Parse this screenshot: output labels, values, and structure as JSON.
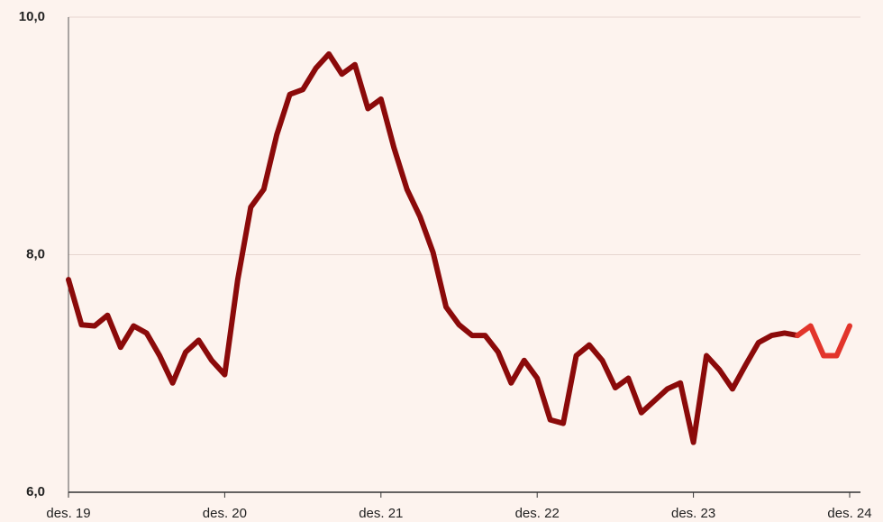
{
  "chart_data": {
    "type": "line",
    "categories": [
      "des. 19",
      null,
      null,
      null,
      null,
      null,
      null,
      null,
      null,
      null,
      null,
      null,
      "des. 20",
      null,
      null,
      null,
      null,
      null,
      null,
      null,
      null,
      null,
      null,
      null,
      "des. 21",
      null,
      null,
      null,
      null,
      null,
      null,
      null,
      null,
      null,
      null,
      null,
      "des. 22",
      null,
      null,
      null,
      null,
      null,
      null,
      null,
      null,
      null,
      null,
      null,
      "des. 23",
      null,
      null,
      null,
      null,
      null,
      null,
      null,
      null,
      null,
      null,
      null,
      "des. 24"
    ],
    "series": [
      {
        "color": "#8b0a0a",
        "values": [
          7.79,
          7.41,
          7.4,
          7.49,
          7.22,
          7.4,
          7.34,
          7.15,
          6.92,
          7.18,
          7.28,
          7.11,
          6.99,
          7.79,
          8.4,
          8.55,
          9.01,
          9.35,
          9.39,
          9.57,
          9.69,
          9.52,
          9.6,
          9.23,
          9.31,
          8.9,
          8.55,
          8.32,
          8.02,
          7.56,
          7.41,
          7.32,
          7.32,
          7.18,
          6.92,
          7.11,
          6.96,
          6.61,
          6.58,
          7.15,
          7.24,
          7.11,
          6.88,
          6.96,
          6.67,
          6.77,
          6.87,
          6.92,
          6.42,
          7.15,
          7.03,
          6.87,
          7.07,
          7.26,
          7.32,
          7.34,
          7.32,
          null,
          null,
          null,
          null
        ]
      },
      {
        "color": "#e2352b",
        "values": [
          null,
          null,
          null,
          null,
          null,
          null,
          null,
          null,
          null,
          null,
          null,
          null,
          null,
          null,
          null,
          null,
          null,
          null,
          null,
          null,
          null,
          null,
          null,
          null,
          null,
          null,
          null,
          null,
          null,
          null,
          null,
          null,
          null,
          null,
          null,
          null,
          null,
          null,
          null,
          null,
          null,
          null,
          null,
          null,
          null,
          null,
          null,
          null,
          null,
          null,
          null,
          null,
          null,
          null,
          null,
          null,
          7.32,
          7.4,
          7.15,
          7.15,
          7.4
        ]
      }
    ],
    "ylim": [
      6,
      10
    ],
    "yticks": [
      {
        "value": 6,
        "label": "6,0"
      },
      {
        "value": 8,
        "label": "8,0"
      },
      {
        "value": 10,
        "label": "10,0"
      }
    ],
    "grid": true
  }
}
